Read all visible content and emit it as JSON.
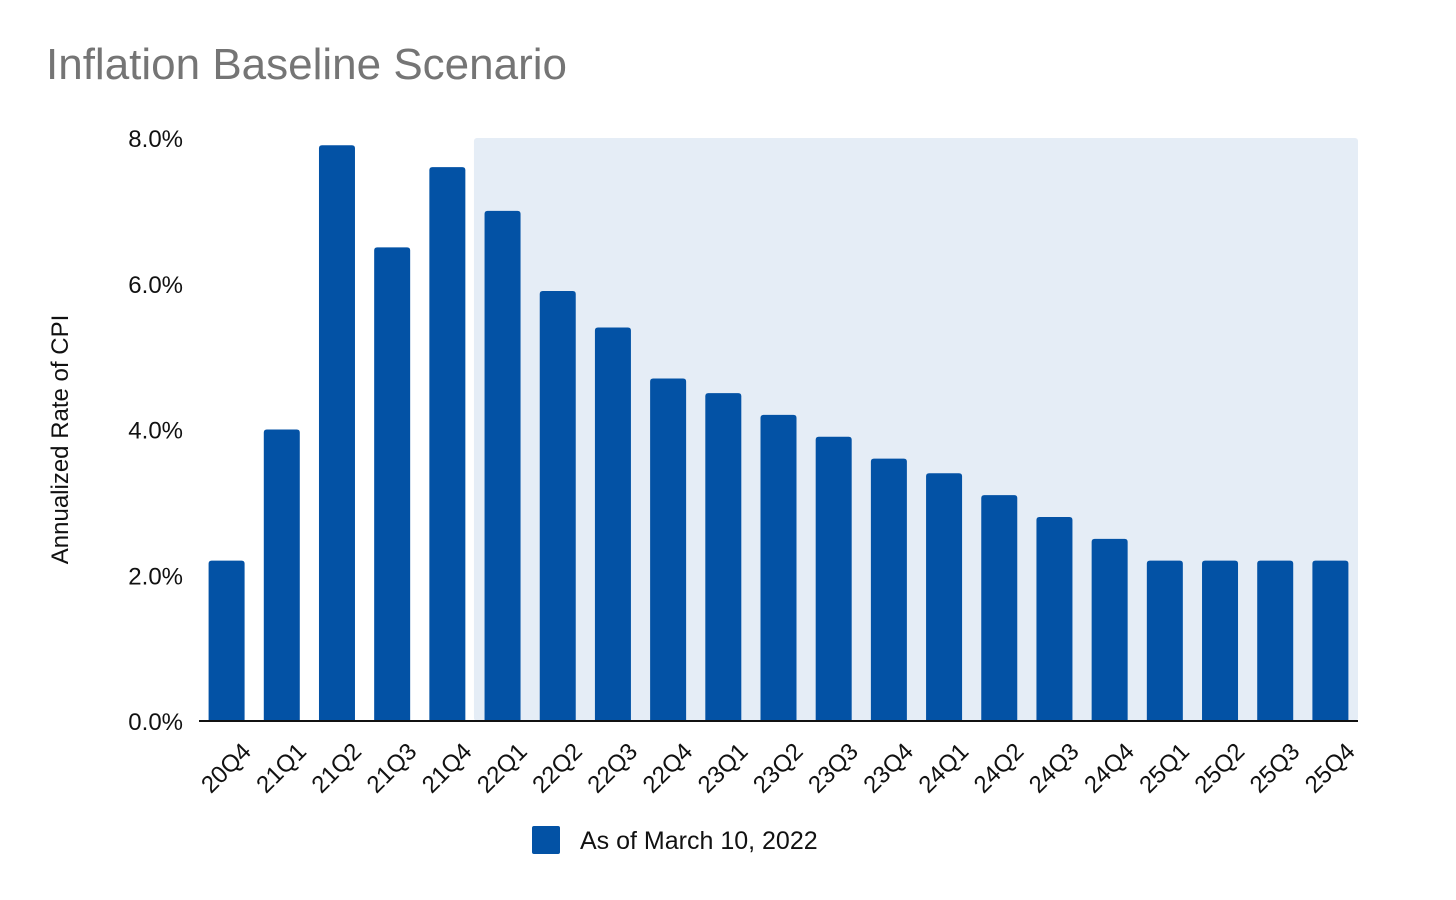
{
  "chart_data": {
    "type": "bar",
    "title": "Inflation Baseline Scenario",
    "ylabel": "Annualized Rate of CPI",
    "xlabel": "",
    "ylim": [
      0,
      8
    ],
    "yticks": [
      "0.0%",
      "2.0%",
      "4.0%",
      "6.0%",
      "8.0%"
    ],
    "ytick_values": [
      0,
      2,
      4,
      6,
      8
    ],
    "categories": [
      "20Q4",
      "21Q1",
      "21Q2",
      "21Q3",
      "21Q4",
      "22Q1",
      "22Q2",
      "22Q3",
      "22Q4",
      "23Q1",
      "23Q2",
      "23Q3",
      "23Q4",
      "24Q1",
      "24Q2",
      "24Q3",
      "24Q4",
      "25Q1",
      "25Q2",
      "25Q3",
      "25Q4"
    ],
    "series": [
      {
        "name": "As of March 10, 2022",
        "color": "#0352a5",
        "values": [
          2.2,
          4.0,
          7.9,
          6.5,
          7.6,
          7.0,
          5.9,
          5.4,
          4.7,
          4.5,
          4.2,
          3.9,
          3.6,
          3.4,
          3.1,
          2.8,
          2.5,
          2.2,
          2.2,
          2.2,
          2.2
        ]
      }
    ],
    "shaded_region": {
      "from_category": "22Q1",
      "to_category": "25Q4",
      "color": "#e5edf6"
    },
    "grid": false,
    "legend_position": "bottom-center"
  }
}
